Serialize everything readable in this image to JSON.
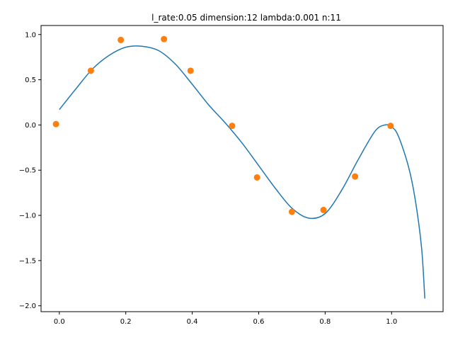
{
  "chart_data": {
    "type": "line",
    "title": "l_rate:0.05 dimension:12 lambda:0.001 n:11",
    "xlabel": "",
    "ylabel": "",
    "xlim": [
      -0.055,
      1.155
    ],
    "ylim": [
      -2.065,
      1.1
    ],
    "grid": false,
    "x_ticks": [
      0.0,
      0.2,
      0.4,
      0.6,
      0.8,
      1.0
    ],
    "x_tick_labels": [
      "0.0",
      "0.2",
      "0.4",
      "0.6",
      "0.8",
      "1.0"
    ],
    "y_ticks": [
      1.0,
      0.5,
      0.0,
      -0.5,
      -1.0,
      -1.5,
      -2.0
    ],
    "y_tick_labels": [
      "1.0",
      "0.5",
      "0.0",
      "−0.5",
      "−1.0",
      "−1.5",
      "−2.0"
    ],
    "series": [
      {
        "type": "line",
        "color": "#1f77b4",
        "x": [
          0.0,
          0.05,
          0.1,
          0.15,
          0.2,
          0.25,
          0.3,
          0.35,
          0.4,
          0.45,
          0.5,
          0.55,
          0.6,
          0.65,
          0.7,
          0.75,
          0.8,
          0.85,
          0.9,
          0.95,
          0.98,
          1.0,
          1.02,
          1.05,
          1.07,
          1.09,
          1.1
        ],
        "y": [
          0.17,
          0.4,
          0.62,
          0.77,
          0.86,
          0.87,
          0.82,
          0.67,
          0.45,
          0.22,
          0.02,
          -0.2,
          -0.45,
          -0.7,
          -0.92,
          -1.03,
          -0.98,
          -0.72,
          -0.38,
          -0.07,
          0.0,
          -0.02,
          -0.12,
          -0.45,
          -0.8,
          -1.35,
          -1.92
        ]
      },
      {
        "type": "scatter",
        "color": "#ff7f0e",
        "x": [
          -0.01,
          0.095,
          0.185,
          0.315,
          0.395,
          0.52,
          0.595,
          0.7,
          0.795,
          0.89,
          0.997
        ],
        "y": [
          0.01,
          0.6,
          0.94,
          0.95,
          0.6,
          -0.01,
          -0.58,
          -0.96,
          -0.94,
          -0.57,
          -0.01
        ]
      }
    ]
  }
}
